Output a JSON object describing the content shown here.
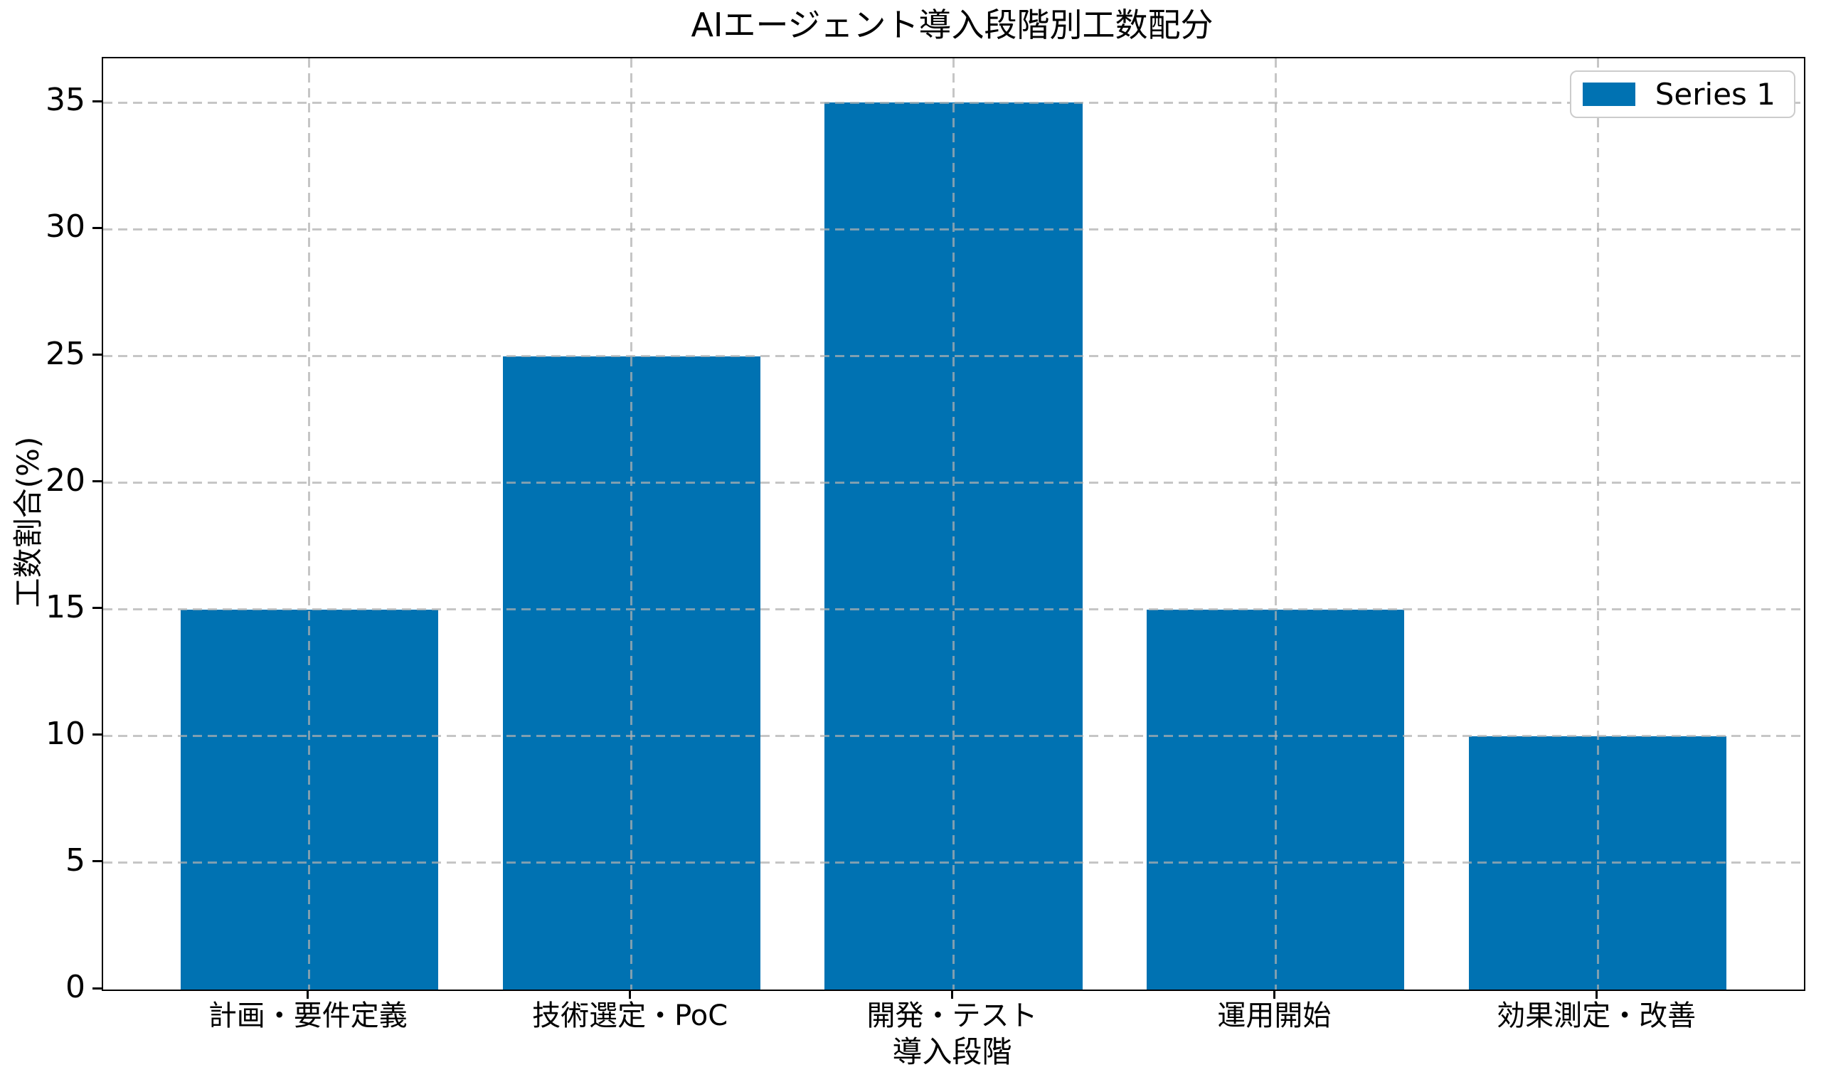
{
  "chart_data": {
    "type": "bar",
    "title": "AIエージェント導入段階別工数配分",
    "xlabel": "導入段階",
    "ylabel": "工数割合(%)",
    "categories": [
      "計画・要件定義",
      "技術選定・PoC",
      "開発・テスト",
      "運用開始",
      "効果測定・改善"
    ],
    "series": [
      {
        "name": "Series 1",
        "values": [
          15,
          25,
          35,
          15,
          10
        ]
      }
    ],
    "ylim": [
      0,
      36.75
    ],
    "yticks": [
      0,
      5,
      10,
      15,
      20,
      25,
      30,
      35
    ],
    "bar_color": "#0072b2",
    "bar_width_fraction": 0.8,
    "x_margin_units": 0.64,
    "grid": "dashed, both axes, drawn over bars",
    "grid_color": "#b0b0b0",
    "legend_position": "upper right",
    "background_color": "#ffffff",
    "spine_color": "#000000"
  }
}
